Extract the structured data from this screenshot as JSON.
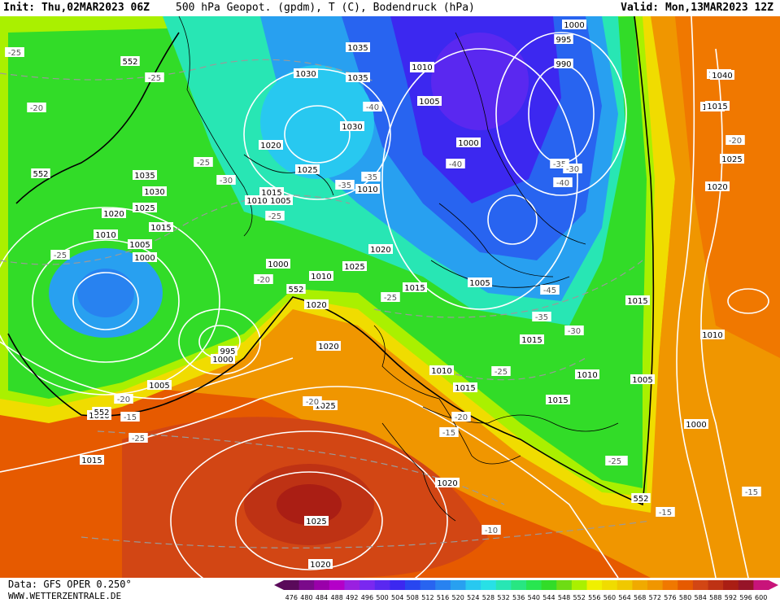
{
  "header": {
    "init": "Init: Thu,02MAR2023 06Z",
    "title": "500 hPa Geopot. (gpdm), T (C), Bodendruck (hPa)",
    "valid": "Valid: Mon,13MAR2023 12Z"
  },
  "footer": {
    "source": "Data: GFS OPER 0.250°",
    "website": "WWW.WETTERZENTRALE.DE"
  },
  "colorbar": {
    "ticks": [
      "476",
      "480",
      "484",
      "488",
      "492",
      "496",
      "500",
      "504",
      "508",
      "512",
      "516",
      "520",
      "524",
      "528",
      "532",
      "536",
      "540",
      "544",
      "548",
      "552",
      "556",
      "560",
      "564",
      "568",
      "572",
      "576",
      "580",
      "584",
      "588",
      "592",
      "596",
      "600"
    ],
    "colors": [
      "#5a0a5a",
      "#7a0a8a",
      "#9a00aa",
      "#b400c8",
      "#9a20e0",
      "#7a28f0",
      "#5a28f0",
      "#3c28f0",
      "#2846f0",
      "#2864f0",
      "#2882f0",
      "#28a0f0",
      "#28c8f0",
      "#28e0e6",
      "#28e6b4",
      "#28e682",
      "#28e650",
      "#32dc28",
      "#6edc14",
      "#aaf000",
      "#f0f000",
      "#f0dc00",
      "#f0c800",
      "#f0aa00",
      "#f09600",
      "#f07800",
      "#e65a00",
      "#d24614",
      "#be3214",
      "#aa1e14",
      "#961428",
      "#c8147a"
    ]
  },
  "legend_values": {
    "geopotential_units": "gpdm",
    "temperature_units": "C",
    "pressure_units": "hPa"
  },
  "isobar_labels": [
    "1035",
    "1030",
    "1035",
    "1030",
    "1020",
    "1025",
    "1035",
    "1030",
    "1025",
    "1020",
    "1015",
    "1010",
    "1005",
    "1000",
    "1010",
    "1005",
    "1015",
    "1010",
    "1020",
    "1025",
    "1000",
    "1010",
    "1015",
    "1020",
    "995",
    "1000",
    "1005",
    "1010",
    "1015",
    "1025",
    "1020",
    "1025",
    "1020",
    "1010",
    "1015",
    "1015",
    "1005",
    "1010",
    "1015",
    "1005",
    "1000",
    "1015",
    "1010",
    "1020",
    "1025",
    "1030",
    "1035",
    "1040",
    "1015",
    "1010",
    "995",
    "990",
    "1000",
    "1005",
    "1010",
    "1000",
    "1020"
  ],
  "temperature_labels": [
    "-30",
    "-25",
    "-20",
    "-25",
    "-30",
    "-35",
    "-40",
    "-35",
    "-25",
    "-25",
    "-20",
    "-25",
    "-20",
    "-15",
    "-25",
    "-30",
    "-35",
    "-40",
    "-45",
    "-40",
    "-35",
    "-30",
    "-25",
    "-20",
    "-15",
    "-20",
    "-15",
    "-10",
    "-25",
    "-20",
    "-15",
    "-20",
    "-25"
  ],
  "geopotential_labels": [
    "552",
    "552",
    "552",
    "552",
    "552"
  ]
}
